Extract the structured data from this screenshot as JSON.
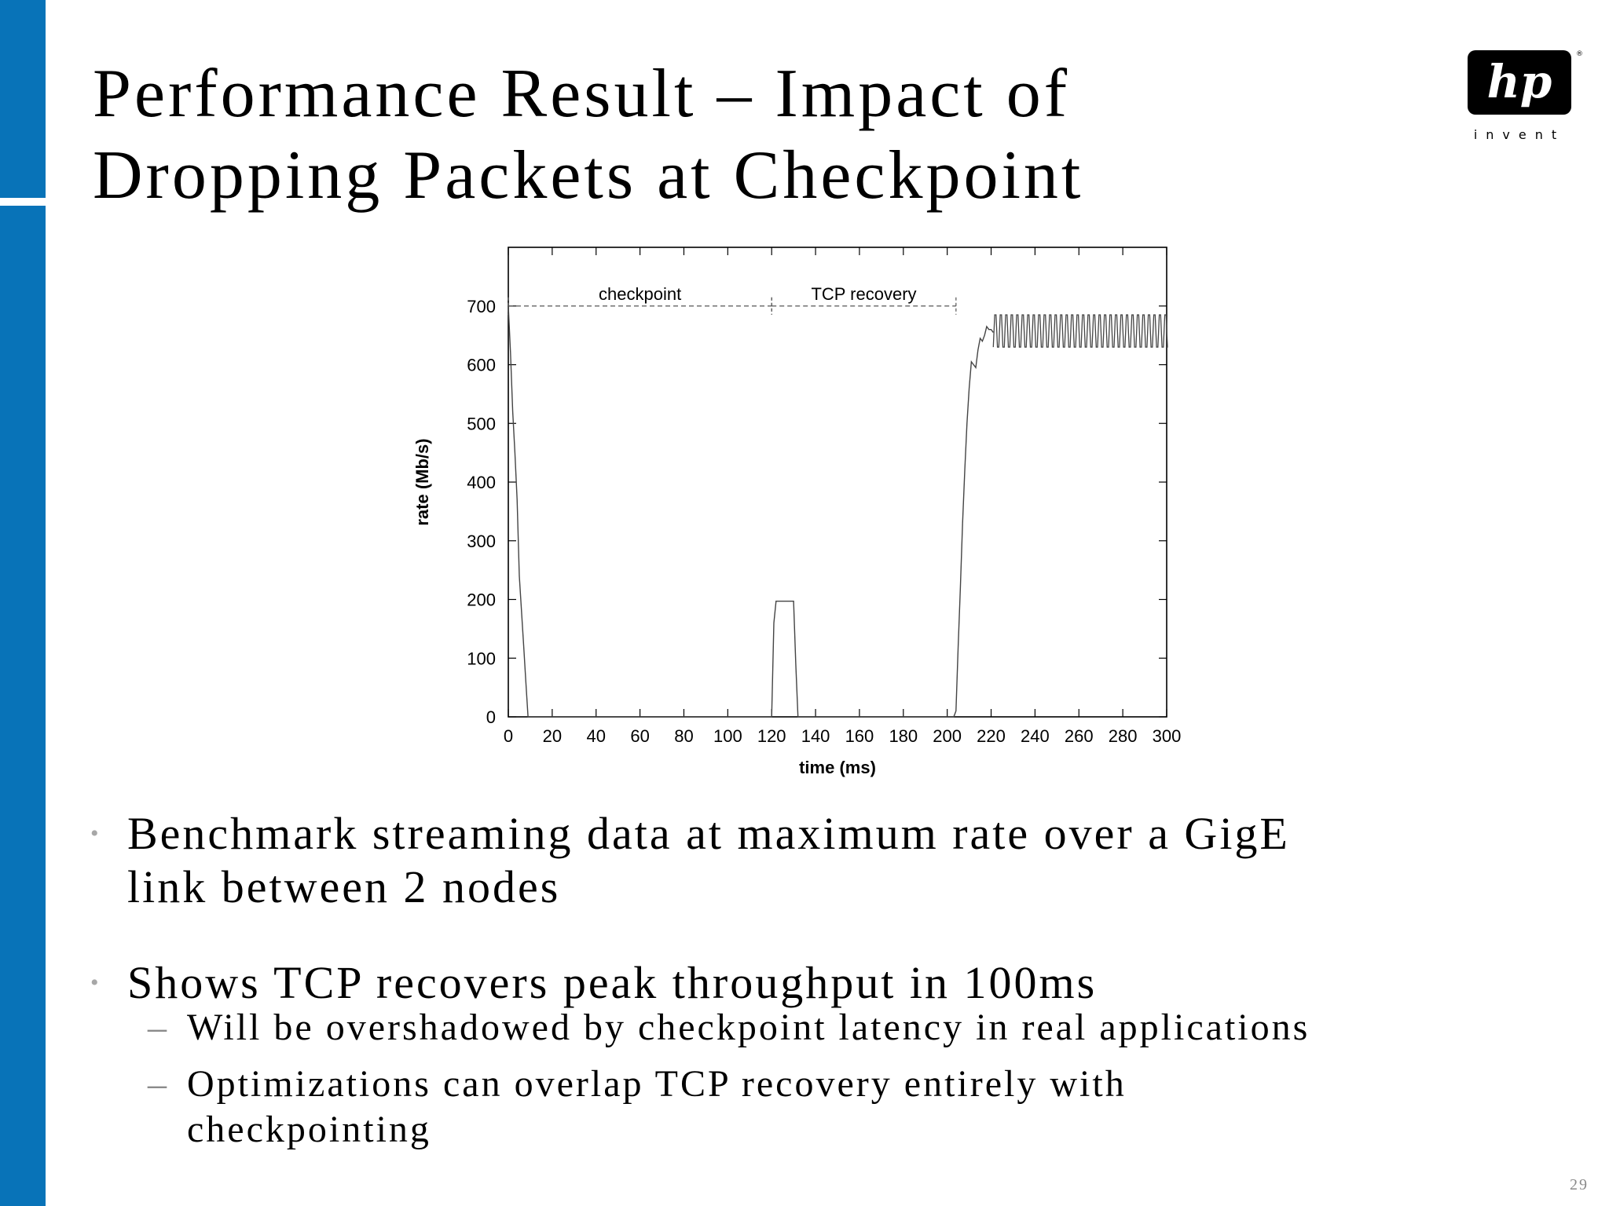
{
  "slide": {
    "title_line1": "Performance Result – Impact of",
    "title_line2": "Dropping Packets at Checkpoint",
    "page_number": "29"
  },
  "logo": {
    "mark": "hp",
    "tagline": "invent",
    "registered": "®"
  },
  "bullets": [
    {
      "lines": [
        "Benchmark streaming data at maximum rate over a GigE",
        "link between 2 nodes"
      ],
      "sub": []
    },
    {
      "lines": [
        "Shows TCP recovers peak throughput in 100ms"
      ],
      "sub": [
        {
          "lines": [
            "Will be overshadowed by checkpoint latency in real applications"
          ]
        },
        {
          "lines": [
            "Optimizations can overlap TCP recovery entirely with",
            "checkpointing"
          ]
        }
      ]
    }
  ],
  "chart_data": {
    "type": "line",
    "title": "",
    "xlabel": "time (ms)",
    "ylabel": "rate (Mb/s)",
    "xlim": [
      0,
      300
    ],
    "ylim": [
      0,
      800
    ],
    "xticks": [
      0,
      20,
      40,
      60,
      80,
      100,
      120,
      140,
      160,
      180,
      200,
      220,
      240,
      260,
      280,
      300
    ],
    "yticks": [
      0,
      100,
      200,
      300,
      400,
      500,
      600,
      700
    ],
    "grid": false,
    "legend": "none",
    "series": [
      {
        "x": [
          0,
          1,
          2,
          3,
          4,
          5,
          6,
          7,
          8,
          9,
          10,
          120,
          121,
          122,
          124,
          126,
          128,
          130,
          131,
          132,
          203,
          204,
          205,
          206,
          207,
          208,
          209,
          210,
          211,
          212,
          213,
          214,
          215,
          216,
          217,
          218,
          219,
          220,
          221
        ],
        "y": [
          700,
          620,
          520,
          450,
          370,
          240,
          180,
          120,
          60,
          0,
          0,
          0,
          160,
          197,
          197,
          197,
          197,
          197,
          90,
          0,
          0,
          10,
          120,
          220,
          330,
          420,
          500,
          560,
          605,
          600,
          595,
          625,
          645,
          640,
          650,
          665,
          660,
          660,
          655
        ]
      }
    ],
    "oscillation": {
      "x_start": 221,
      "x_end": 300,
      "period": 2.5,
      "y_low": 630,
      "y_high": 685
    },
    "annotations": [
      {
        "label": "checkpoint",
        "x_start": 0,
        "x_end": 120,
        "y": 700
      },
      {
        "label": "TCP recovery",
        "x_start": 120,
        "x_end": 204,
        "y": 700
      }
    ]
  }
}
